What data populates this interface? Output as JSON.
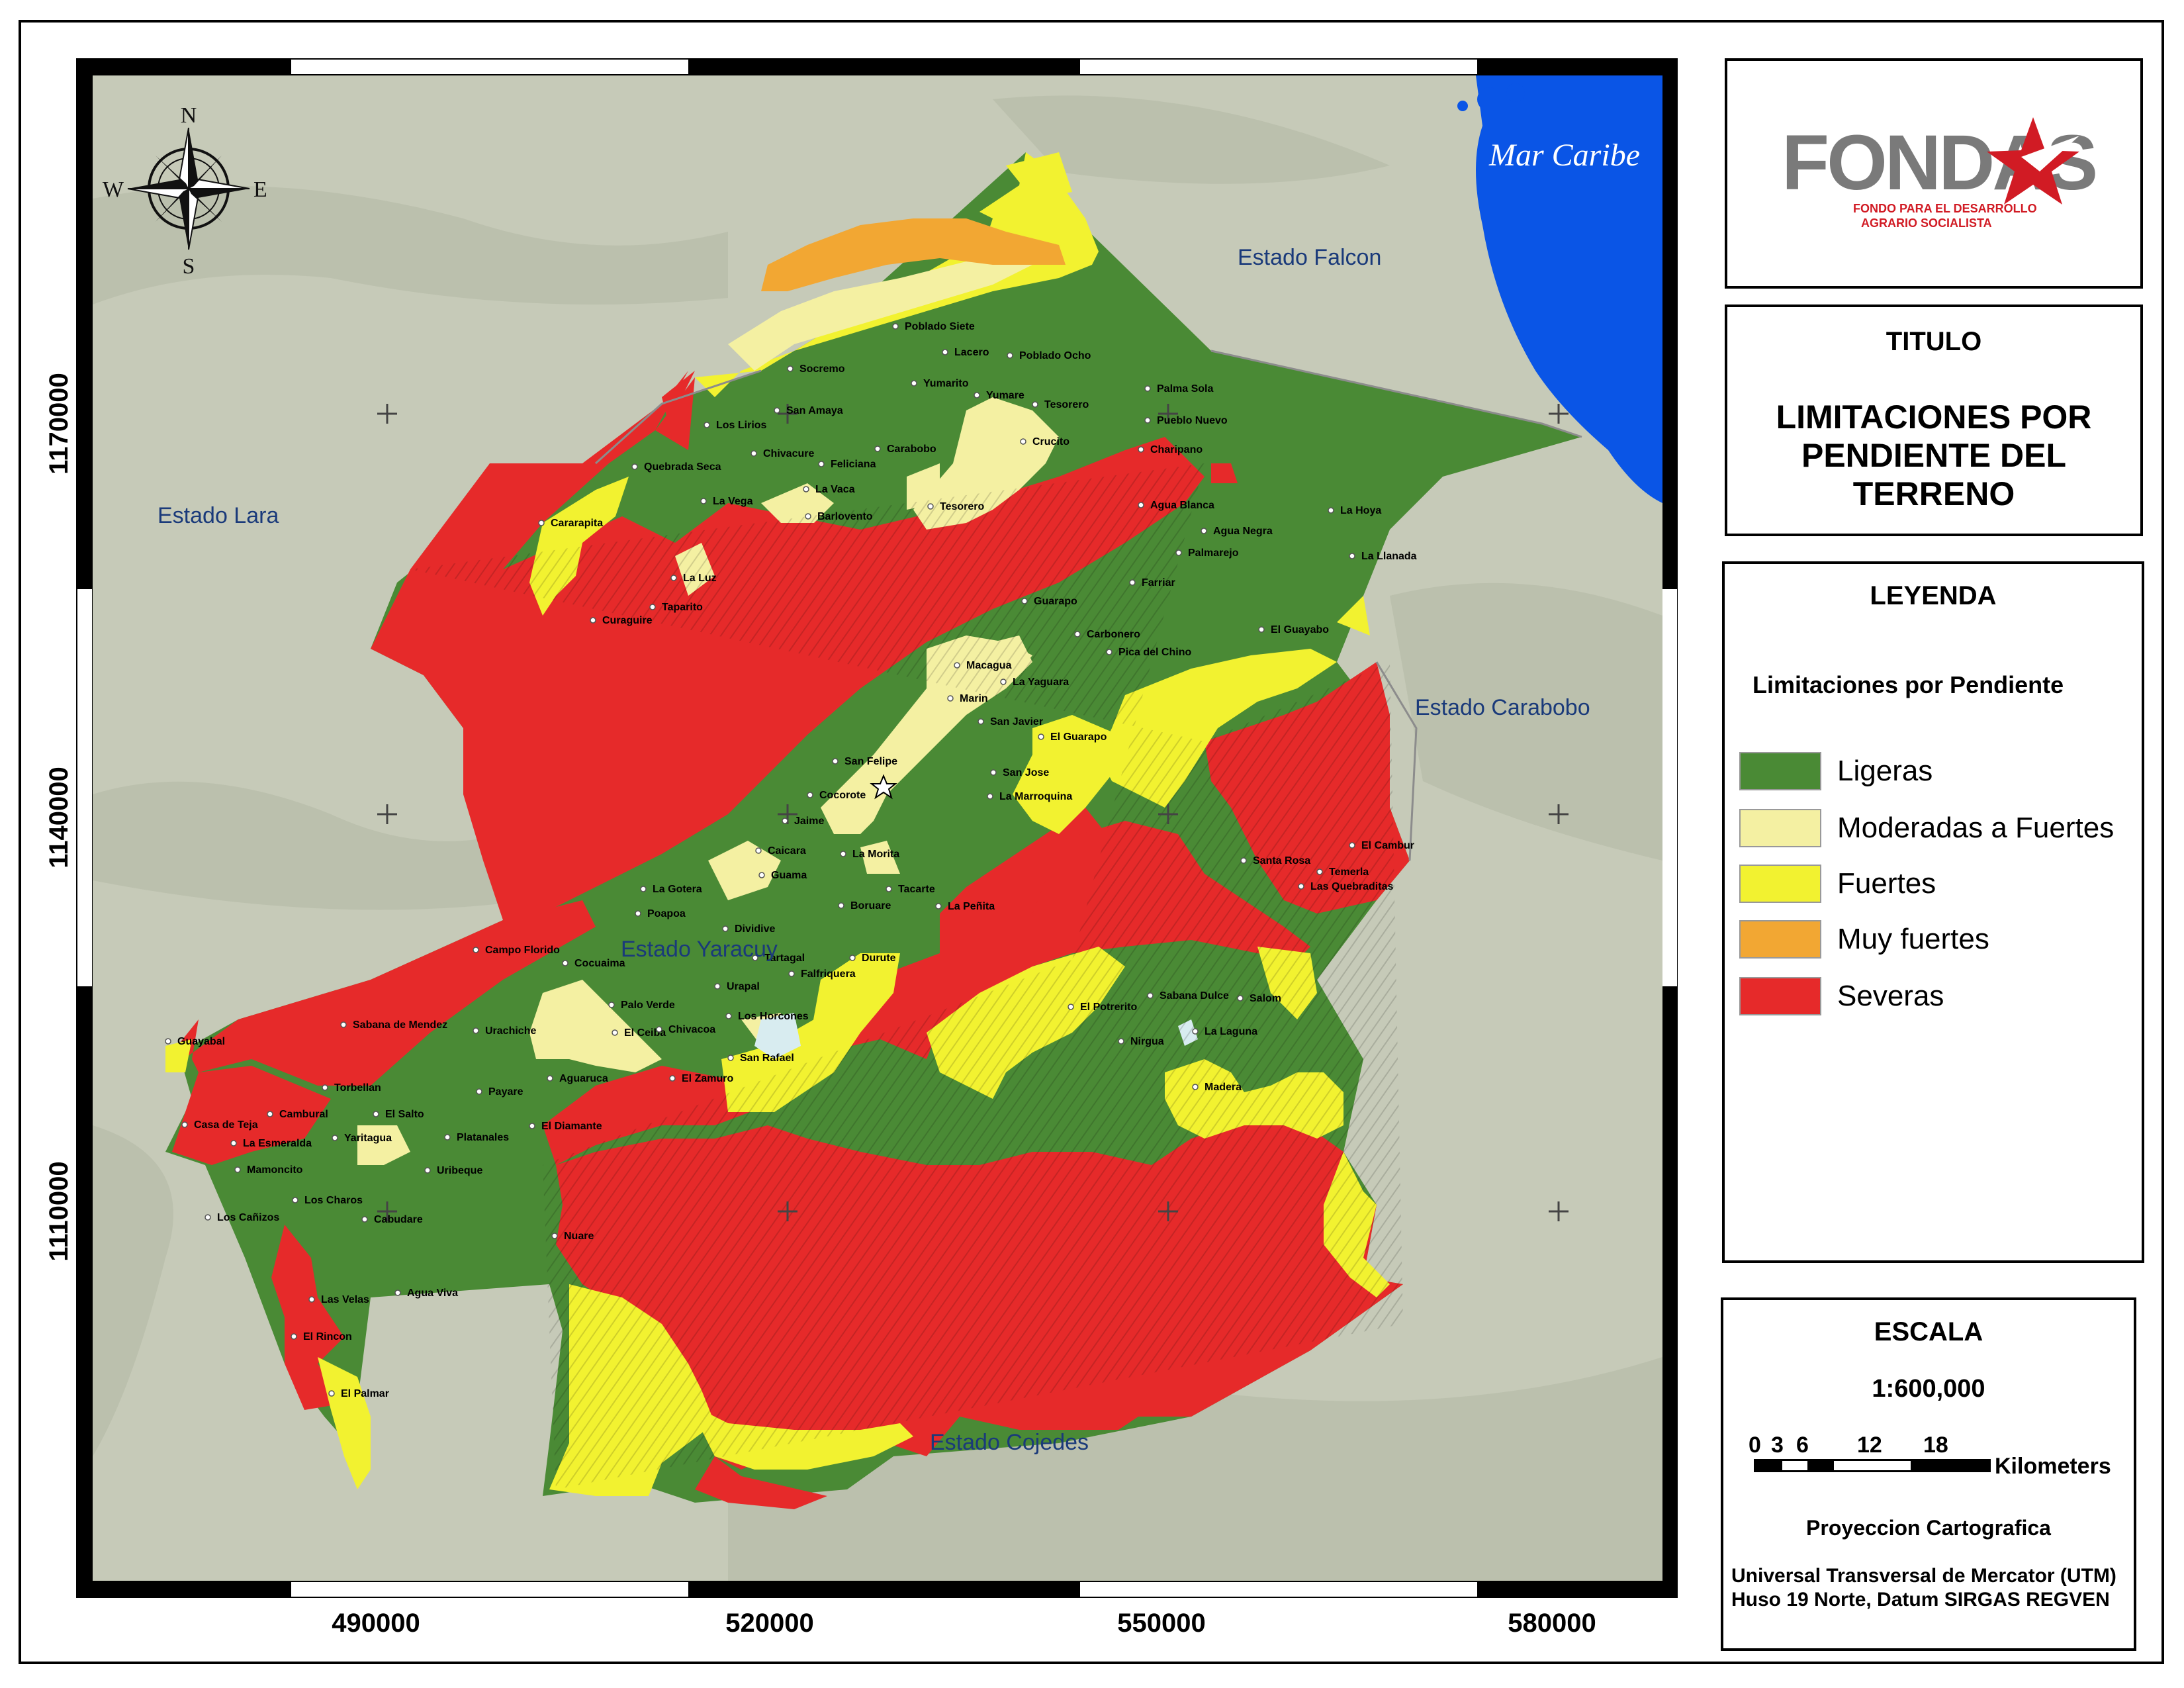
{
  "map": {
    "sea_label": "Mar Caribe",
    "region_labels": [
      "Estado Falcon",
      "Estado Lara",
      "Estado Carabobo",
      "Estado Yaracuy",
      "Estado Cojedes"
    ],
    "compass": {
      "north": "N",
      "south": "S",
      "east": "E",
      "west": "W"
    },
    "x_ticks": [
      "490000",
      "520000",
      "550000",
      "580000"
    ],
    "y_ticks": [
      "1170000",
      "1140000",
      "1110000"
    ],
    "places": [
      "Poblado Siete",
      "Lacero",
      "Poblado Ocho",
      "Socremo",
      "Yumarito",
      "Yumare",
      "Palma Sola",
      "San Amaya",
      "Tesorero",
      "Pueblo Nuevo",
      "Los Lirios",
      "Crucito",
      "Quebrada Seca",
      "Chivacure",
      "Carabobo",
      "Charipano",
      "Feliciana",
      "La Vaca",
      "La Vega",
      "Tesorero",
      "Agua Blanca",
      "Barlovento",
      "Cararapita",
      "Agua Negra",
      "La Hoya",
      "Palmarejo",
      "La Llanada",
      "La Luz",
      "Farriar",
      "Taparito",
      "Guarapo",
      "Curaguire",
      "Carbonero",
      "El Guayabo",
      "Pica del Chino",
      "Macagua",
      "La Yaguara",
      "Marin",
      "San Javier",
      "El Guarapo",
      "San Felipe",
      "San Jose",
      "Cocorote",
      "La Marroquina",
      "Jaime",
      "La Morita",
      "El Cambur",
      "Caicara",
      "Santa Rosa",
      "Temerla",
      "Guama",
      "Las Quebraditas",
      "La Gotera",
      "Tacarte",
      "Poapoa",
      "Boruare",
      "La Peñita",
      "Dividive",
      "Campo Florido",
      "Tartagal",
      "Durute",
      "Cocuaima",
      "Falfriquera",
      "Urapal",
      "El Potrerito",
      "Sabana Dulce",
      "Salom",
      "Palo Verde",
      "Los Horcones",
      "Sabana de Mendez",
      "Urachiche",
      "El Ceiba",
      "Chivacoa",
      "La Laguna",
      "Nirgua",
      "Guayabal",
      "San Rafael",
      "Aguaruca",
      "El Zamuro",
      "Madera",
      "Torbellan",
      "Payare",
      "Cambural",
      "El Salto",
      "Casa de Teja",
      "El Diamante",
      "La Esmeralda",
      "Yaritagua",
      "Platanales",
      "Uribeque",
      "Mamoncito",
      "Los Charos",
      "Los Cañizos",
      "Cabudare",
      "Nuare",
      "Agua Viva",
      "Las Velas",
      "El Rincon",
      "El Palmar"
    ],
    "capital_marker": "star",
    "colors": {
      "sea": "#0a55e6",
      "background_relief": "#c6cab8",
      "ligeras": "#4a8a35",
      "moderadas_a_fuertes": "#f4f0a2",
      "fuertes": "#f2f230",
      "muy_fuertes": "#f2a733",
      "severas": "#e62a2a"
    }
  },
  "logo": {
    "text": "FONDAS",
    "tagline_line1": "FONDO PARA EL DESARROLLO",
    "tagline_line2": "AGRARIO SOCIALISTA"
  },
  "title_panel": {
    "heading": "TITULO",
    "title": "LIMITACIONES POR PENDIENTE DEL TERRENO"
  },
  "legend": {
    "heading": "LEYENDA",
    "subtitle": "Limitaciones por Pendiente",
    "items": [
      {
        "label": "Ligeras",
        "color": "#4a8a35"
      },
      {
        "label": "Moderadas a Fuertes",
        "color": "#f4f0a2"
      },
      {
        "label": "Fuertes",
        "color": "#f2f230"
      },
      {
        "label": "Muy fuertes",
        "color": "#f2a733"
      },
      {
        "label": "Severas",
        "color": "#e62a2a"
      }
    ]
  },
  "scale": {
    "heading": "ESCALA",
    "ratio": "1:600,000",
    "ticks": [
      "0",
      "3",
      "6",
      "12",
      "18"
    ],
    "unit": "Kilometers",
    "projection_heading": "Proyeccion Cartografica",
    "projection_line1": "Universal Transversal de Mercator (UTM)",
    "projection_line2": "Huso 19 Norte, Datum SIRGAS REGVEN"
  }
}
